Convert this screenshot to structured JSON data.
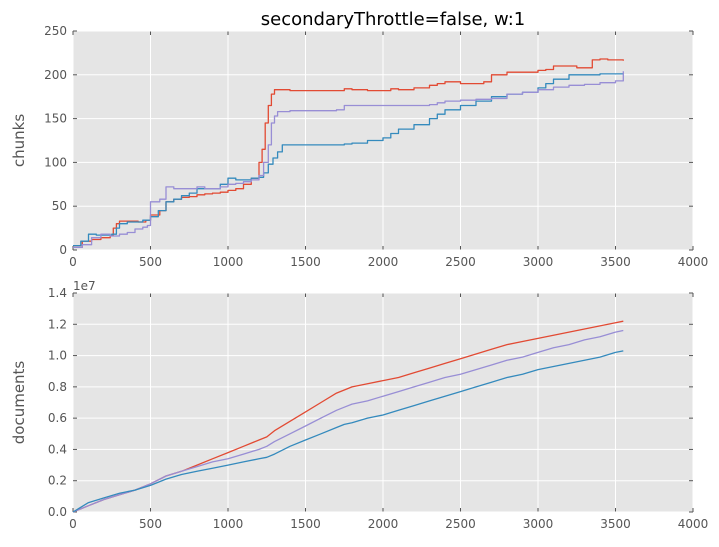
{
  "chart_data": [
    {
      "type": "line",
      "title": "secondaryThrottle=false, w:1",
      "xlabel": "",
      "ylabel": "chunks",
      "xlim": [
        0,
        4000
      ],
      "ylim": [
        0,
        250
      ],
      "xticks": [
        "0",
        "500",
        "1000",
        "1500",
        "2000",
        "2500",
        "3000",
        "3500",
        "4000"
      ],
      "yticks": [
        "0",
        "50",
        "100",
        "150",
        "200",
        "250"
      ],
      "grid": true,
      "series": [
        {
          "name": "red",
          "color": "#e24a33",
          "x": [
            0,
            60,
            120,
            180,
            240,
            260,
            280,
            300,
            350,
            420,
            470,
            500,
            560,
            600,
            650,
            700,
            750,
            800,
            850,
            900,
            950,
            1000,
            1050,
            1100,
            1150,
            1200,
            1220,
            1240,
            1260,
            1280,
            1300,
            1320,
            1400,
            1500,
            1600,
            1700,
            1750,
            1800,
            1900,
            2000,
            2050,
            2100,
            2200,
            2300,
            2350,
            2400,
            2500,
            2600,
            2650,
            2700,
            2800,
            2900,
            3000,
            3050,
            3100,
            3200,
            3250,
            3300,
            3350,
            3400,
            3450,
            3550
          ],
          "y": [
            3,
            10,
            12,
            14,
            17,
            25,
            30,
            33,
            33,
            32,
            34,
            40,
            45,
            55,
            58,
            60,
            61,
            63,
            64,
            65,
            66,
            68,
            70,
            75,
            82,
            100,
            115,
            145,
            165,
            178,
            183,
            183,
            182,
            182,
            182,
            182,
            184,
            183,
            182,
            182,
            184,
            183,
            185,
            188,
            190,
            192,
            190,
            190,
            192,
            200,
            203,
            203,
            205,
            206,
            210,
            210,
            208,
            208,
            217,
            218,
            217,
            216
          ]
        },
        {
          "name": "blue",
          "color": "#348abd",
          "x": [
            0,
            50,
            100,
            150,
            200,
            250,
            280,
            300,
            350,
            400,
            450,
            500,
            550,
            600,
            650,
            700,
            750,
            800,
            850,
            900,
            950,
            1000,
            1050,
            1100,
            1150,
            1200,
            1230,
            1260,
            1290,
            1320,
            1350,
            1400,
            1500,
            1600,
            1700,
            1750,
            1800,
            1900,
            2000,
            2050,
            2100,
            2200,
            2300,
            2350,
            2400,
            2500,
            2600,
            2700,
            2800,
            2900,
            3000,
            3050,
            3100,
            3200,
            3300,
            3400,
            3550
          ],
          "y": [
            5,
            10,
            18,
            17,
            17,
            18,
            25,
            30,
            32,
            32,
            34,
            38,
            45,
            55,
            58,
            62,
            65,
            70,
            70,
            70,
            75,
            82,
            80,
            80,
            82,
            83,
            88,
            98,
            105,
            112,
            120,
            120,
            120,
            120,
            120,
            121,
            122,
            125,
            128,
            133,
            138,
            143,
            150,
            155,
            160,
            165,
            170,
            175,
            178,
            180,
            185,
            190,
            195,
            200,
            200,
            201,
            202
          ]
        },
        {
          "name": "purple",
          "color": "#988ed5",
          "x": [
            0,
            60,
            120,
            180,
            240,
            300,
            350,
            400,
            450,
            480,
            500,
            560,
            600,
            650,
            700,
            750,
            800,
            850,
            900,
            950,
            1000,
            1050,
            1100,
            1150,
            1200,
            1230,
            1260,
            1280,
            1300,
            1320,
            1400,
            1500,
            1600,
            1700,
            1750,
            1800,
            1900,
            2000,
            2100,
            2200,
            2300,
            2350,
            2400,
            2500,
            2600,
            2700,
            2800,
            2900,
            3000,
            3100,
            3200,
            3300,
            3400,
            3500,
            3550
          ],
          "y": [
            3,
            6,
            14,
            18,
            16,
            18,
            20,
            24,
            26,
            28,
            55,
            58,
            72,
            70,
            70,
            70,
            72,
            70,
            70,
            72,
            75,
            76,
            78,
            80,
            85,
            100,
            120,
            145,
            153,
            158,
            159,
            159,
            159,
            160,
            165,
            165,
            165,
            165,
            165,
            165,
            166,
            168,
            170,
            171,
            172,
            173,
            178,
            180,
            183,
            186,
            188,
            189,
            191,
            193,
            204
          ]
        }
      ]
    },
    {
      "type": "line",
      "title": "",
      "xlabel": "",
      "ylabel": "documents",
      "offset_label": "1e7",
      "xlim": [
        0,
        4000
      ],
      "ylim": [
        0,
        1.4
      ],
      "xticks": [
        "0",
        "500",
        "1000",
        "1500",
        "2000",
        "2500",
        "3000",
        "3500",
        "4000"
      ],
      "yticks": [
        "0.0",
        "0.2",
        "0.4",
        "0.6",
        "0.8",
        "1.0",
        "1.2",
        "1.4"
      ],
      "grid": true,
      "series": [
        {
          "name": "red",
          "color": "#e24a33",
          "x": [
            0,
            100,
            200,
            300,
            400,
            500,
            600,
            700,
            800,
            900,
            1000,
            1100,
            1200,
            1250,
            1300,
            1400,
            1500,
            1600,
            1700,
            1750,
            1800,
            1900,
            2000,
            2100,
            2200,
            2300,
            2400,
            2500,
            2600,
            2700,
            2800,
            2900,
            3000,
            3100,
            3200,
            3300,
            3400,
            3500,
            3550
          ],
          "y": [
            0,
            0.04,
            0.08,
            0.11,
            0.14,
            0.18,
            0.23,
            0.26,
            0.3,
            0.34,
            0.38,
            0.42,
            0.46,
            0.48,
            0.52,
            0.58,
            0.64,
            0.7,
            0.76,
            0.78,
            0.8,
            0.82,
            0.84,
            0.86,
            0.89,
            0.92,
            0.95,
            0.98,
            1.01,
            1.04,
            1.07,
            1.09,
            1.11,
            1.13,
            1.15,
            1.17,
            1.19,
            1.21,
            1.22
          ]
        },
        {
          "name": "purple",
          "color": "#988ed5",
          "x": [
            0,
            100,
            200,
            300,
            400,
            500,
            600,
            700,
            800,
            900,
            1000,
            1100,
            1200,
            1250,
            1300,
            1400,
            1500,
            1600,
            1700,
            1750,
            1800,
            1900,
            2000,
            2100,
            2200,
            2300,
            2400,
            2500,
            2600,
            2700,
            2800,
            2900,
            3000,
            3100,
            3200,
            3300,
            3400,
            3500,
            3550
          ],
          "y": [
            0,
            0.04,
            0.08,
            0.11,
            0.14,
            0.18,
            0.23,
            0.26,
            0.29,
            0.32,
            0.34,
            0.37,
            0.4,
            0.42,
            0.45,
            0.5,
            0.55,
            0.6,
            0.65,
            0.67,
            0.69,
            0.71,
            0.74,
            0.77,
            0.8,
            0.83,
            0.86,
            0.88,
            0.91,
            0.94,
            0.97,
            0.99,
            1.02,
            1.05,
            1.07,
            1.1,
            1.12,
            1.15,
            1.16
          ]
        },
        {
          "name": "blue",
          "color": "#348abd",
          "x": [
            0,
            100,
            200,
            300,
            400,
            500,
            600,
            700,
            800,
            900,
            1000,
            1100,
            1200,
            1250,
            1300,
            1400,
            1500,
            1600,
            1700,
            1750,
            1800,
            1900,
            2000,
            2100,
            2200,
            2300,
            2400,
            2500,
            2600,
            2700,
            2800,
            2900,
            3000,
            3100,
            3200,
            3300,
            3400,
            3500,
            3550
          ],
          "y": [
            0,
            0.06,
            0.09,
            0.12,
            0.14,
            0.17,
            0.21,
            0.24,
            0.26,
            0.28,
            0.3,
            0.32,
            0.34,
            0.35,
            0.37,
            0.42,
            0.46,
            0.5,
            0.54,
            0.56,
            0.57,
            0.6,
            0.62,
            0.65,
            0.68,
            0.71,
            0.74,
            0.77,
            0.8,
            0.83,
            0.86,
            0.88,
            0.91,
            0.93,
            0.95,
            0.97,
            0.99,
            1.02,
            1.03
          ]
        }
      ]
    }
  ]
}
